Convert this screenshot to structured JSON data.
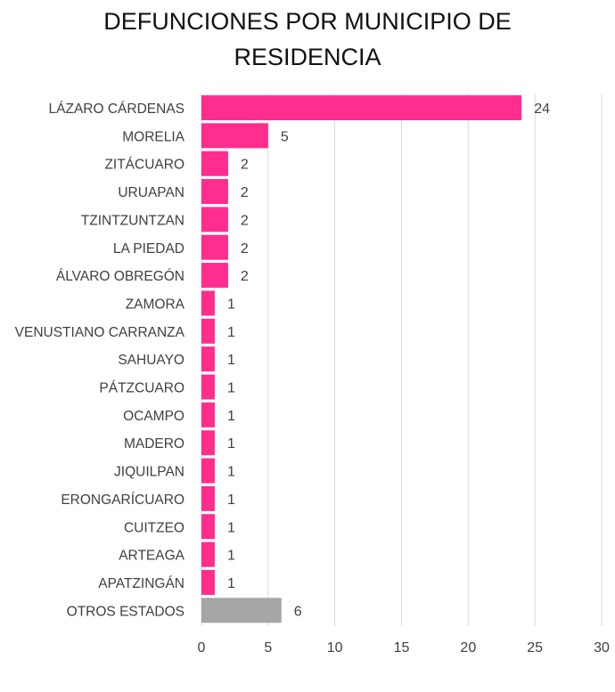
{
  "chart_data": {
    "type": "bar",
    "orientation": "horizontal",
    "title": "DEFUNCIONES POR MUNICIPIO DE\nRESIDENCIA",
    "categories": [
      "LÁZARO CÁRDENAS",
      "MORELIA",
      "ZITÁCUARO",
      "URUAPAN",
      "TZINTZUNTZAN",
      "LA PIEDAD",
      "ÁLVARO OBREGÓN",
      "ZAMORA",
      "VENUSTIANO CARRANZA",
      "SAHUAYO",
      "PÁTZCUARO",
      "OCAMPO",
      "MADERO",
      "JIQUILPAN",
      "ERONGARÍCUARO",
      "CUITZEO",
      "ARTEAGA",
      "APATZINGÁN",
      "OTROS ESTADOS"
    ],
    "values": [
      24,
      5,
      2,
      2,
      2,
      2,
      2,
      1,
      1,
      1,
      1,
      1,
      1,
      1,
      1,
      1,
      1,
      1,
      6
    ],
    "bar_colors": [
      "#ff2d8d",
      "#ff2d8d",
      "#ff2d8d",
      "#ff2d8d",
      "#ff2d8d",
      "#ff2d8d",
      "#ff2d8d",
      "#ff2d8d",
      "#ff2d8d",
      "#ff2d8d",
      "#ff2d8d",
      "#ff2d8d",
      "#ff2d8d",
      "#ff2d8d",
      "#ff2d8d",
      "#ff2d8d",
      "#ff2d8d",
      "#ff2d8d",
      "#a6a6a6"
    ],
    "xlim": [
      0,
      30
    ],
    "xticks": [
      0,
      5,
      10,
      15,
      20,
      25,
      30
    ],
    "grid": true,
    "data_labels": true,
    "xlabel": "",
    "ylabel": ""
  }
}
